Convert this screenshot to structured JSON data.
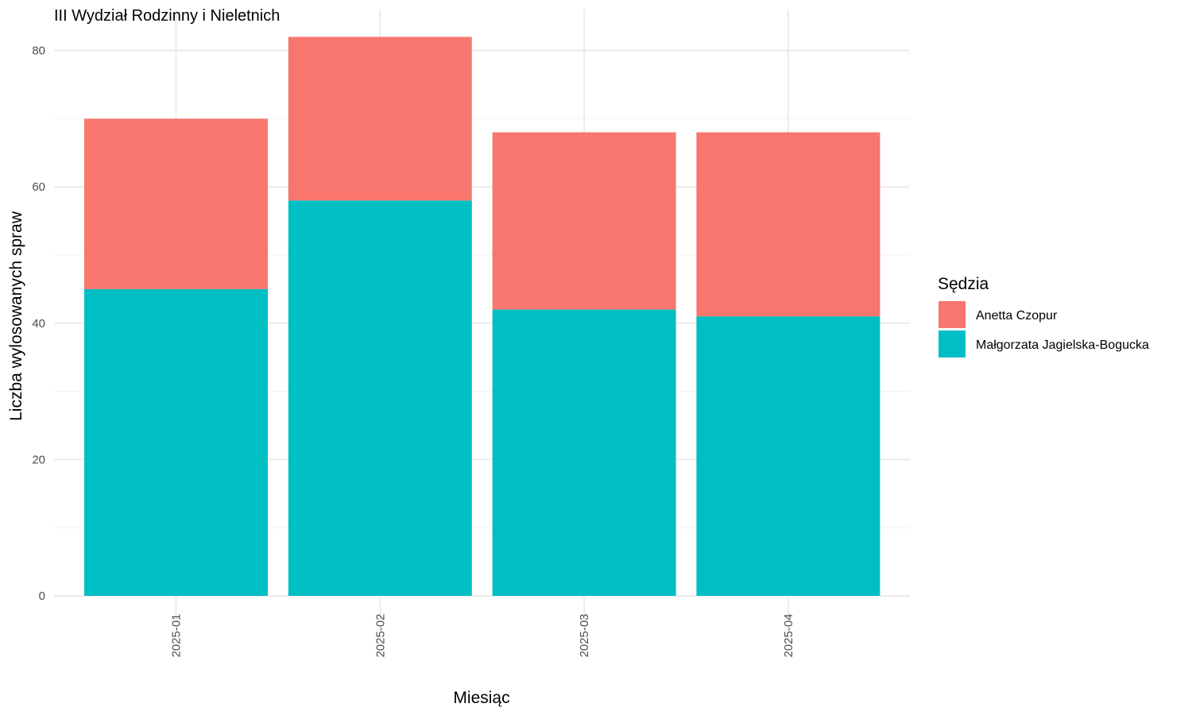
{
  "chart_data": {
    "type": "bar",
    "stacked": true,
    "title": "III Wydział Rodzinny i Nieletnich",
    "xlabel": "Miesiąc",
    "ylabel": "Liczba wylosowanych spraw",
    "categories": [
      "2025-01",
      "2025-02",
      "2025-03",
      "2025-04"
    ],
    "series": [
      {
        "name": "Małgorzata Jagielska-Bogucka",
        "color": "#00BFC4",
        "values": [
          45,
          58,
          42,
          41
        ]
      },
      {
        "name": "Anetta Czopur",
        "color": "#F8766D",
        "values": [
          25,
          24,
          26,
          27
        ]
      }
    ],
    "ylim": [
      0,
      82
    ],
    "yticks": [
      0,
      20,
      40,
      60,
      80
    ],
    "grid": true,
    "legend": {
      "title": "Sędzia",
      "position": "right",
      "entries": [
        "Anetta Czopur",
        "Małgorzata Jagielska-Bogucka"
      ]
    }
  }
}
